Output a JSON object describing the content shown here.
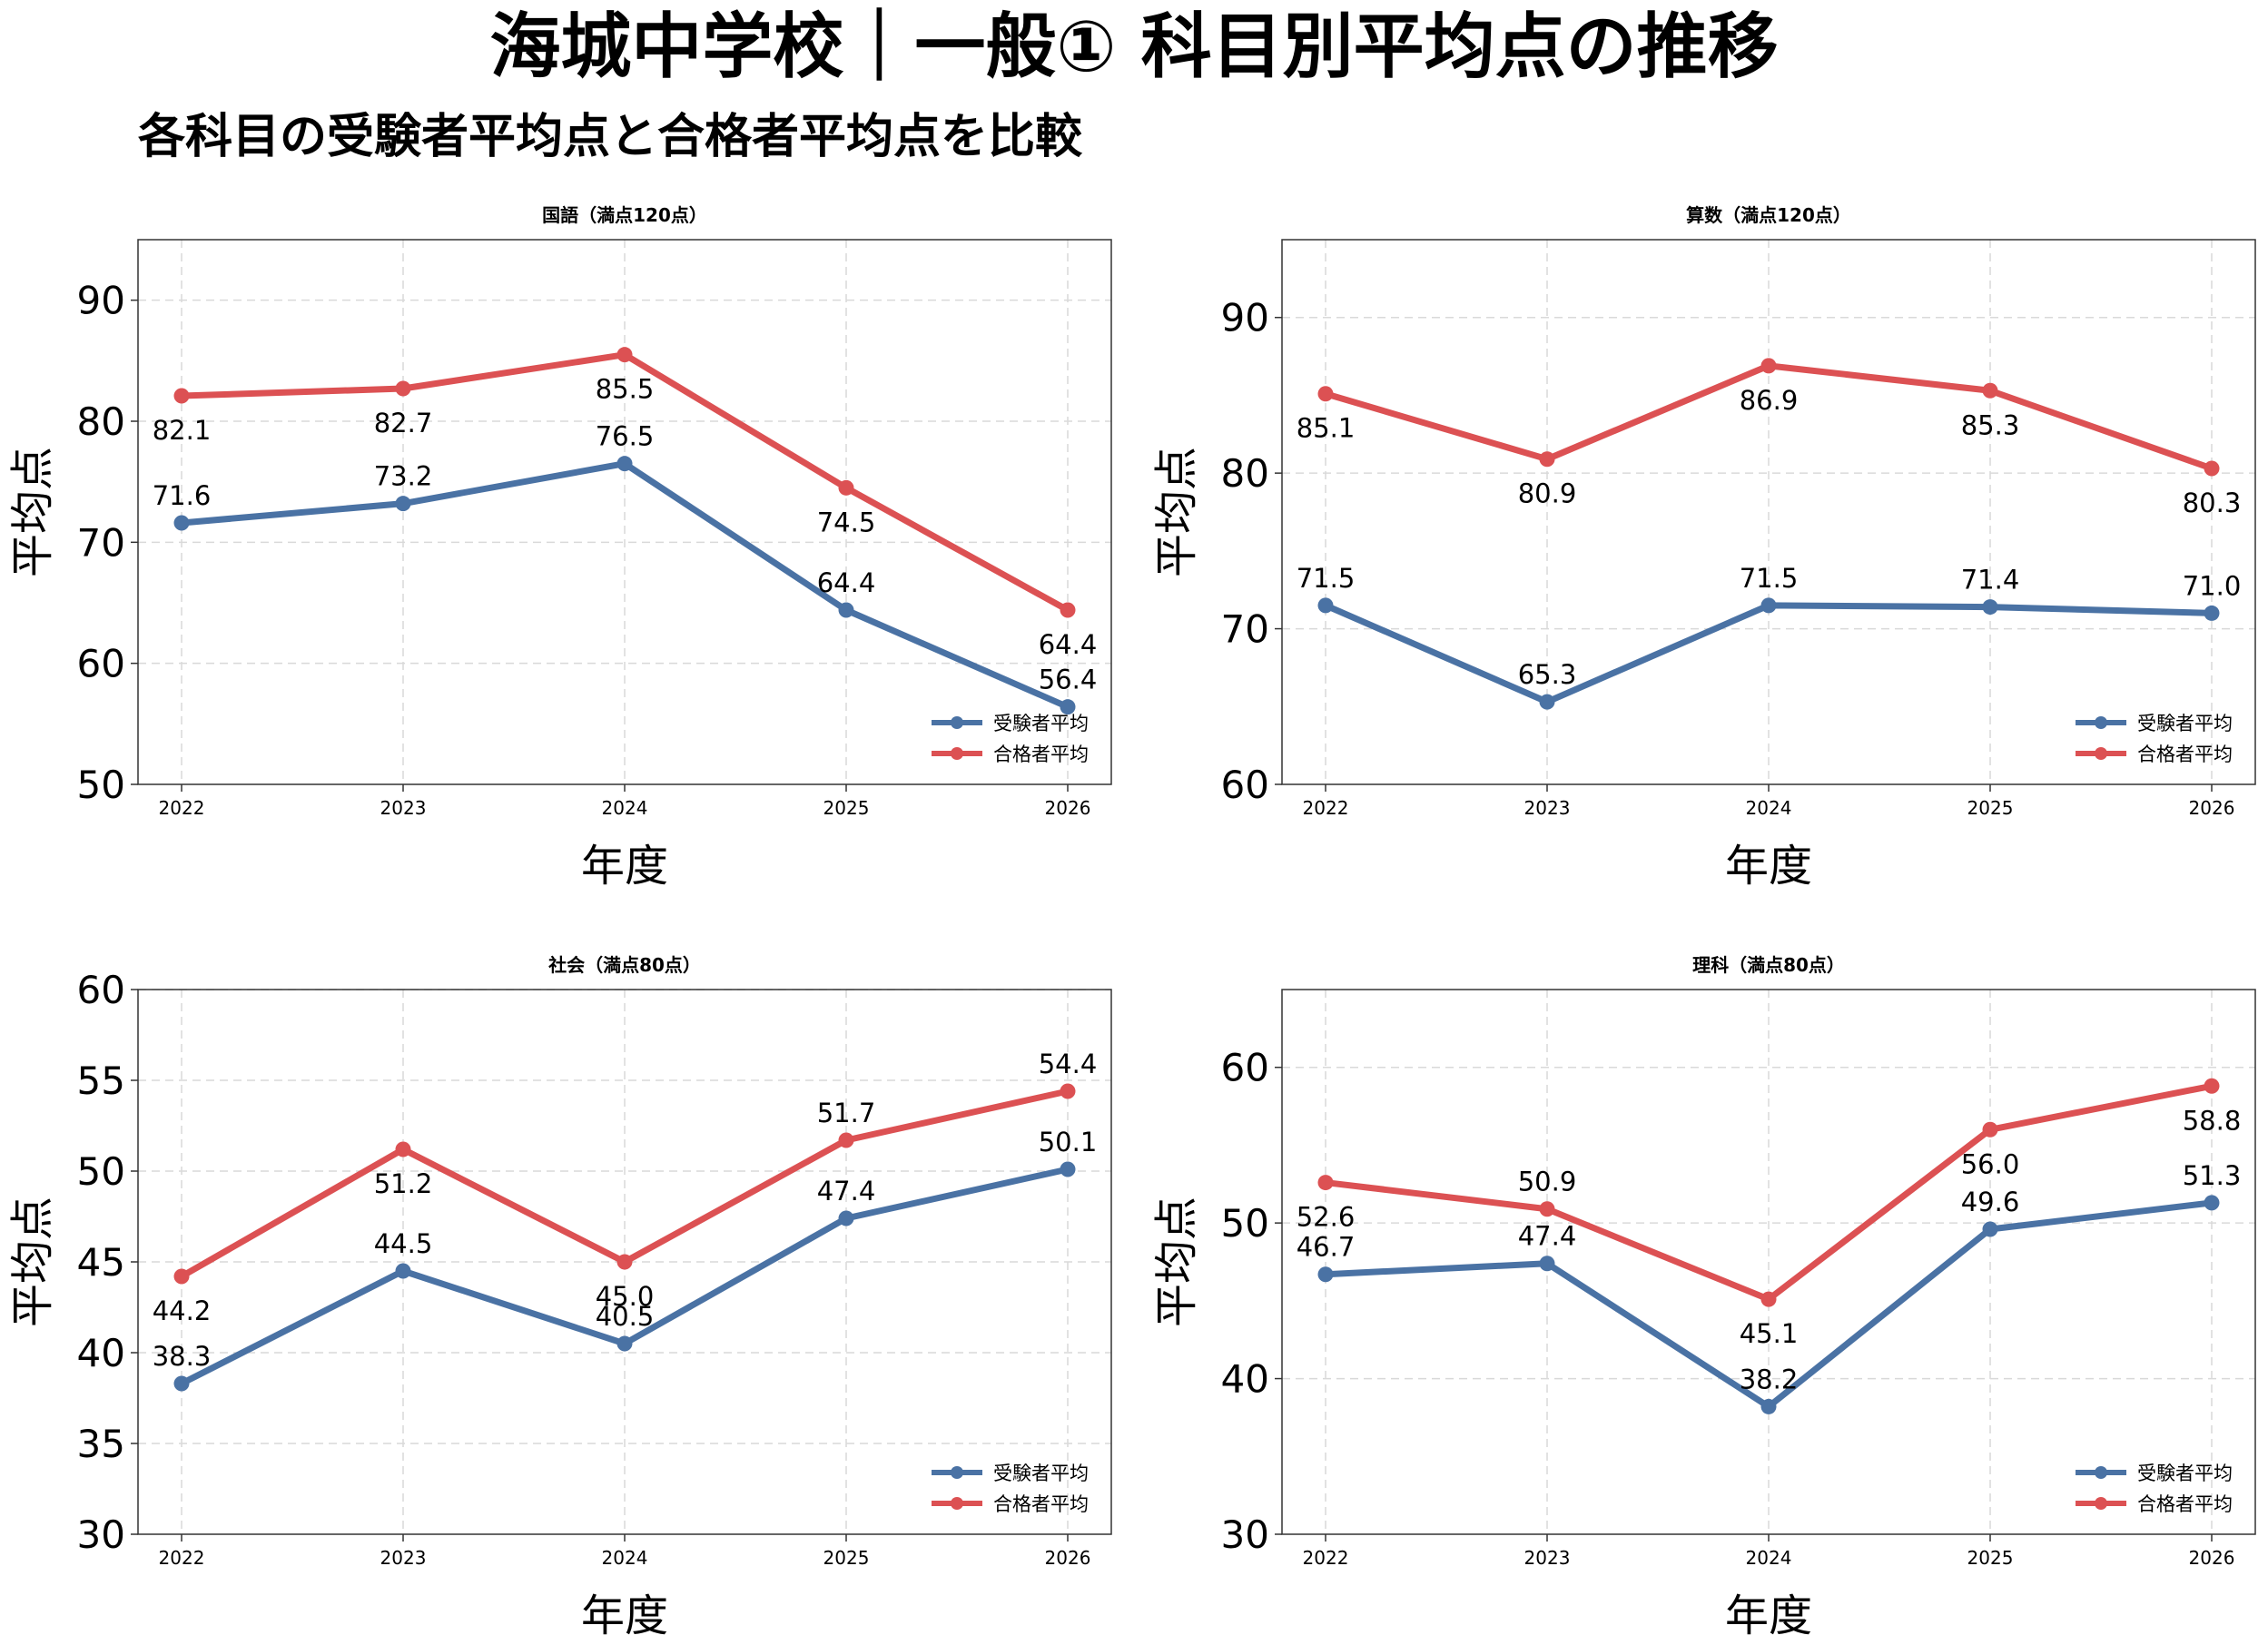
{
  "title": "海城中学校｜一般① 科目別平均点の推移",
  "subtitle": "各科目の受験者平均点と合格者平均点を比較",
  "colors": {
    "examinee": "#4a72a4",
    "passer": "#dc5153"
  },
  "chart_data": [
    {
      "type": "line",
      "title": "国語（満点120点）",
      "xlabel": "年度",
      "ylabel": "平均点",
      "categories": [
        "2022",
        "2023",
        "2024",
        "2025",
        "2026"
      ],
      "ylim": [
        50,
        95
      ],
      "yticks": [
        50,
        60,
        70,
        80,
        90
      ],
      "grid": true,
      "legend": "bottom-right",
      "series": [
        {
          "name": "受験者平均",
          "values": [
            71.6,
            73.2,
            76.5,
            64.4,
            56.4
          ],
          "labels": [
            "71.6",
            "73.2",
            "76.5",
            "64.4",
            "56.4"
          ]
        },
        {
          "name": "合格者平均",
          "values": [
            82.1,
            82.7,
            85.5,
            74.5,
            64.4
          ],
          "labels": [
            "82.1",
            "82.7",
            "85.5",
            "74.5",
            "64.4"
          ]
        }
      ]
    },
    {
      "type": "line",
      "title": "算数（満点120点）",
      "xlabel": "年度",
      "ylabel": "平均点",
      "categories": [
        "2022",
        "2023",
        "2024",
        "2025",
        "2026"
      ],
      "ylim": [
        60,
        95
      ],
      "yticks": [
        60,
        70,
        80,
        90
      ],
      "grid": true,
      "legend": "bottom-right",
      "series": [
        {
          "name": "受験者平均",
          "values": [
            71.5,
            65.3,
            71.5,
            71.4,
            71.0
          ],
          "labels": [
            "71.5",
            "65.3",
            "71.5",
            "71.4",
            "71.0"
          ]
        },
        {
          "name": "合格者平均",
          "values": [
            85.1,
            80.9,
            86.9,
            85.3,
            80.3
          ],
          "labels": [
            "85.1",
            "80.9",
            "86.9",
            "85.3",
            "80.3"
          ]
        }
      ]
    },
    {
      "type": "line",
      "title": "社会（満点80点）",
      "xlabel": "年度",
      "ylabel": "平均点",
      "categories": [
        "2022",
        "2023",
        "2024",
        "2025",
        "2026"
      ],
      "ylim": [
        30,
        60
      ],
      "yticks": [
        30,
        35,
        40,
        45,
        50,
        55,
        60
      ],
      "grid": true,
      "legend": "bottom-right",
      "series": [
        {
          "name": "受験者平均",
          "values": [
            38.3,
            44.5,
            40.5,
            47.4,
            50.1
          ],
          "labels": [
            "38.3",
            "44.5",
            "40.5",
            "47.4",
            "50.1"
          ]
        },
        {
          "name": "合格者平均",
          "values": [
            44.2,
            51.2,
            45.0,
            51.7,
            54.4
          ],
          "labels": [
            "44.2",
            "51.2",
            "45.0",
            "51.7",
            "54.4"
          ]
        }
      ]
    },
    {
      "type": "line",
      "title": "理科（満点80点）",
      "xlabel": "年度",
      "ylabel": "平均点",
      "categories": [
        "2022",
        "2023",
        "2024",
        "2025",
        "2026"
      ],
      "ylim": [
        30,
        65
      ],
      "yticks": [
        30,
        40,
        50,
        60
      ],
      "grid": true,
      "legend": "bottom-right",
      "series": [
        {
          "name": "受験者平均",
          "values": [
            46.7,
            47.4,
            38.2,
            49.6,
            51.3
          ],
          "labels": [
            "46.7",
            "47.4",
            "38.2",
            "49.6",
            "51.3"
          ]
        },
        {
          "name": "合格者平均",
          "values": [
            52.6,
            50.9,
            45.1,
            56.0,
            58.8
          ],
          "labels": [
            "52.6",
            "50.9",
            "45.1",
            "56.0",
            "58.8"
          ]
        }
      ]
    }
  ]
}
